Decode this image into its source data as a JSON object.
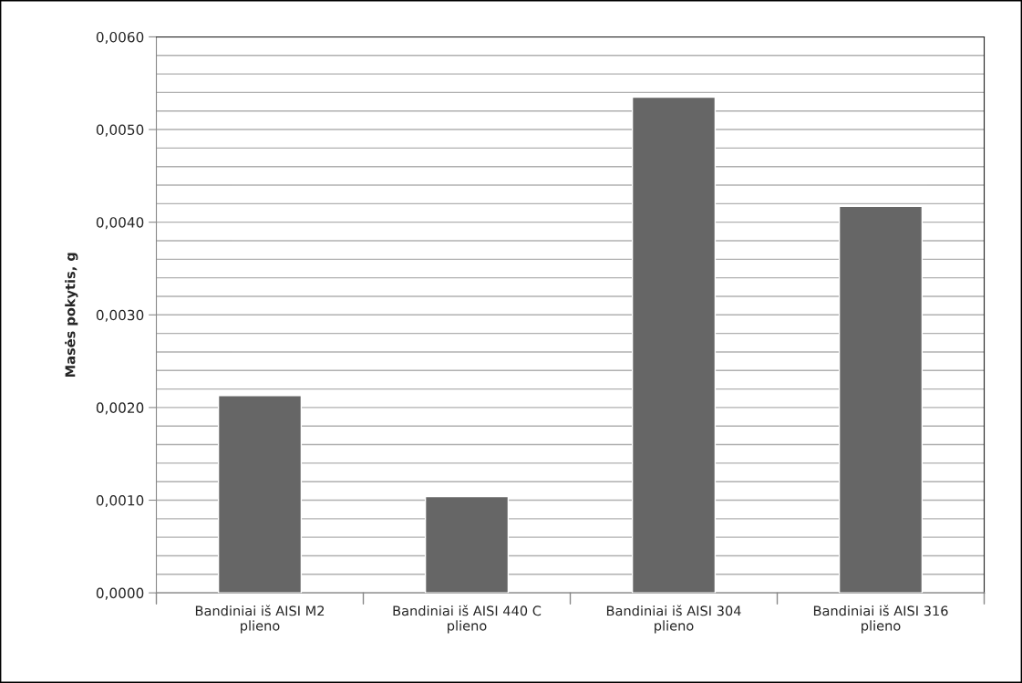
{
  "chart_data": {
    "type": "bar",
    "ylabel": "Masės pokytis, g",
    "categories": [
      "Bandiniai iš AISI M2\nplieno",
      "Bandiniai iš AISI 440 C\nplieno",
      "Bandiniai iš AISI 304\nplieno",
      "Bandiniai iš AISI 316\nplieno"
    ],
    "values": [
      0.00213,
      0.00104,
      0.00535,
      0.00417
    ],
    "color": "#666666",
    "ylim": [
      0,
      0.006
    ],
    "yticks": [
      {
        "value": 0,
        "label": "0,0000"
      },
      {
        "value": 0.0002,
        "label": null
      },
      {
        "value": 0.0004,
        "label": null
      },
      {
        "value": 0.0006,
        "label": null
      },
      {
        "value": 0.0008,
        "label": null
      },
      {
        "value": 0.001,
        "label": "0,0010"
      },
      {
        "value": 0.0012,
        "label": null
      },
      {
        "value": 0.0014,
        "label": null
      },
      {
        "value": 0.0016,
        "label": null
      },
      {
        "value": 0.0018,
        "label": null
      },
      {
        "value": 0.002,
        "label": "0,0020"
      },
      {
        "value": 0.0022,
        "label": null
      },
      {
        "value": 0.0024,
        "label": null
      },
      {
        "value": 0.0026,
        "label": null
      },
      {
        "value": 0.0028,
        "label": null
      },
      {
        "value": 0.003,
        "label": "0,0030"
      },
      {
        "value": 0.0032,
        "label": null
      },
      {
        "value": 0.0034,
        "label": null
      },
      {
        "value": 0.0036,
        "label": null
      },
      {
        "value": 0.0038,
        "label": null
      },
      {
        "value": 0.004,
        "label": "0,0040"
      },
      {
        "value": 0.0042,
        "label": null
      },
      {
        "value": 0.0044,
        "label": null
      },
      {
        "value": 0.0046,
        "label": null
      },
      {
        "value": 0.0048,
        "label": null
      },
      {
        "value": 0.005,
        "label": "0,0050"
      },
      {
        "value": 0.0052,
        "label": null
      },
      {
        "value": 0.0054,
        "label": null
      },
      {
        "value": 0.0056,
        "label": null
      },
      {
        "value": 0.0058,
        "label": null
      },
      {
        "value": 0.006,
        "label": "0,0060"
      }
    ],
    "grid": "y"
  }
}
